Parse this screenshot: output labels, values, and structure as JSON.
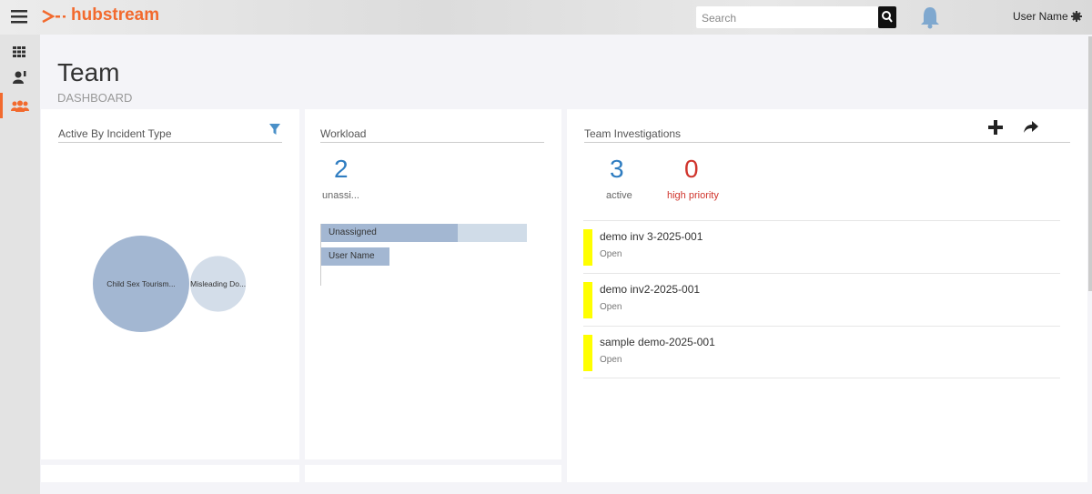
{
  "topbar": {
    "logo": "hubstream",
    "search_placeholder": "Search",
    "user": "User Name"
  },
  "header": {
    "title": "Team",
    "subtitle": "DASHBOARD"
  },
  "incident_panel": {
    "title": "Active By Incident Type",
    "bubbles": [
      {
        "label": "Child Sex Tourism...",
        "value": 3
      },
      {
        "label": "Misleading Do...",
        "value": 1
      }
    ]
  },
  "workload_panel": {
    "title": "Workload",
    "count": 2,
    "count_label": "unassi...",
    "bars": [
      {
        "label": "Unassigned",
        "value": 2
      },
      {
        "label": "User Name",
        "value": 1
      }
    ]
  },
  "investigations_panel": {
    "title": "Team Investigations",
    "active": 3,
    "active_label": "active",
    "high_priority": 0,
    "high_priority_label": "high priority",
    "items": [
      {
        "name": "demo inv 3-2025-001",
        "status": "Open"
      },
      {
        "name": "demo inv2-2025-001",
        "status": "Open"
      },
      {
        "name": "sample demo-2025-001",
        "status": "Open"
      }
    ]
  }
}
